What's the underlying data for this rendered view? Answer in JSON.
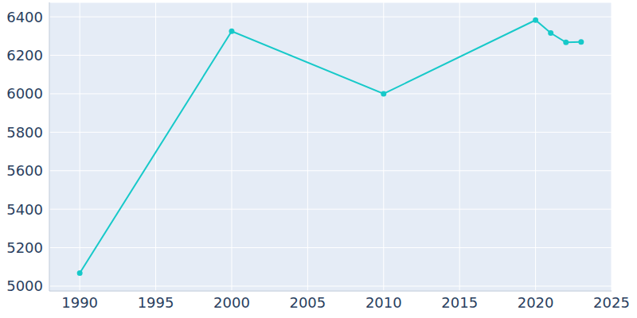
{
  "chart_data": {
    "type": "line",
    "x": [
      1990,
      2000,
      2010,
      2020,
      2021,
      2022,
      2023
    ],
    "values": [
      5068,
      6325,
      6000,
      6383,
      6316,
      6267,
      6269
    ],
    "color": "#17c9c9",
    "xlim": [
      1988,
      2025
    ],
    "xticks": [
      1990,
      1995,
      2000,
      2005,
      2010,
      2015,
      2020,
      2025
    ],
    "ylim": [
      4975,
      6475
    ],
    "yticks": [
      5000,
      5200,
      5400,
      5600,
      5800,
      6000,
      6200,
      6400
    ],
    "grid": true,
    "marker": "circle"
  }
}
